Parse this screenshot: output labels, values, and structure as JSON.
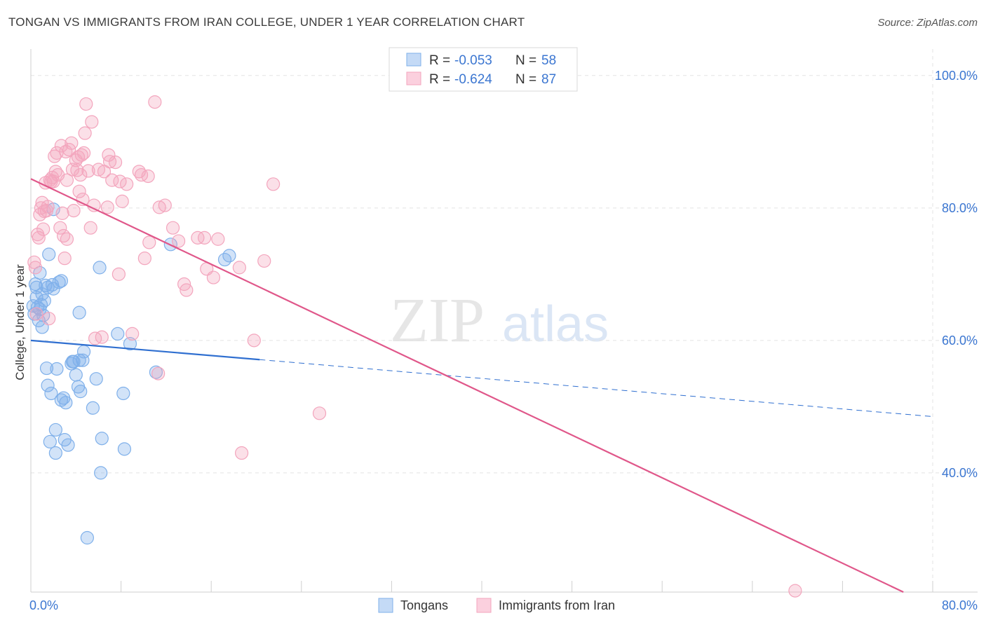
{
  "title": "TONGAN VS IMMIGRANTS FROM IRAN COLLEGE, UNDER 1 YEAR CORRELATION CHART",
  "source": "Source: ZipAtlas.com",
  "watermark": {
    "zip": "ZIP",
    "atlas": "atlas"
  },
  "stats": [
    {
      "r_label": "R =",
      "r_value": "-0.053",
      "n_label": "N =",
      "n_value": "58",
      "color": "#7fb0ea"
    },
    {
      "r_label": "R =",
      "r_value": "-0.624",
      "n_label": "N =",
      "n_value": "87",
      "color": "#f3a5bd"
    }
  ],
  "chart_data": {
    "type": "scatter",
    "title": "TONGAN VS IMMIGRANTS FROM IRAN COLLEGE, UNDER 1 YEAR CORRELATION CHART",
    "xlabel": "",
    "ylabel": "College, Under 1 year",
    "xlim": [
      0,
      80
    ],
    "ylim": [
      22,
      104
    ],
    "x_tick_labels": [
      "0.0%",
      "80.0%"
    ],
    "y_tick_labels": [
      "40.0%",
      "60.0%",
      "80.0%",
      "100.0%"
    ],
    "y_gridlines": [
      40,
      60,
      80,
      100
    ],
    "grid": true,
    "legend_position": "bottom-center",
    "series": [
      {
        "name": "Tongans",
        "color": "#7fb0ea",
        "line_color": "#2f6fd0",
        "trend": {
          "x0": 0,
          "y0": 60.0,
          "x1": 20.3,
          "y1": 57.1,
          "x_dash_end": 80,
          "y_dash_end": 48.5
        },
        "points": [
          [
            0.2,
            65.2
          ],
          [
            0.3,
            64.0
          ],
          [
            0.4,
            68.5
          ],
          [
            0.5,
            68.0
          ],
          [
            0.6,
            65.0
          ],
          [
            0.7,
            63.0
          ],
          [
            0.8,
            70.2
          ],
          [
            0.9,
            65.4
          ],
          [
            1.0,
            62.0
          ],
          [
            1.1,
            63.8
          ],
          [
            1.2,
            66.0
          ],
          [
            1.3,
            68.3
          ],
          [
            1.4,
            55.8
          ],
          [
            1.5,
            53.2
          ],
          [
            1.6,
            73.0
          ],
          [
            1.7,
            44.7
          ],
          [
            1.8,
            52.0
          ],
          [
            1.9,
            68.4
          ],
          [
            2.0,
            67.8
          ],
          [
            2.2,
            43.0
          ],
          [
            2.2,
            46.5
          ],
          [
            2.3,
            55.7
          ],
          [
            2.5,
            68.8
          ],
          [
            2.7,
            69.0
          ],
          [
            2.7,
            51.0
          ],
          [
            2.9,
            51.3
          ],
          [
            3.0,
            45.0
          ],
          [
            3.1,
            50.6
          ],
          [
            3.3,
            44.2
          ],
          [
            3.6,
            56.5
          ],
          [
            3.7,
            56.8
          ],
          [
            4.0,
            54.8
          ],
          [
            4.2,
            53.0
          ],
          [
            4.3,
            57.0
          ],
          [
            4.4,
            52.3
          ],
          [
            4.6,
            57.0
          ],
          [
            4.7,
            58.3
          ],
          [
            5.5,
            49.8
          ],
          [
            5.8,
            54.2
          ],
          [
            6.1,
            71.0
          ],
          [
            6.2,
            40.0
          ],
          [
            6.3,
            45.2
          ],
          [
            7.7,
            61.0
          ],
          [
            8.2,
            52.0
          ],
          [
            8.3,
            43.6
          ],
          [
            8.8,
            59.5
          ],
          [
            11.1,
            55.2
          ],
          [
            12.4,
            74.5
          ],
          [
            17.2,
            72.2
          ],
          [
            17.6,
            72.8
          ],
          [
            2.0,
            79.8
          ],
          [
            4.3,
            64.2
          ],
          [
            5.0,
            30.2
          ],
          [
            0.5,
            66.5
          ],
          [
            1.0,
            67.0
          ],
          [
            1.5,
            68.0
          ],
          [
            3.8,
            56.8
          ],
          [
            0.8,
            64.7
          ]
        ]
      },
      {
        "name": "Immigrants from Iran",
        "color": "#f3a5bd",
        "line_color": "#e0578a",
        "trend": {
          "x0": 0,
          "y0": 84.4,
          "x1": 77.4,
          "y1": 22.0
        },
        "points": [
          [
            0.3,
            71.8
          ],
          [
            0.4,
            71.0
          ],
          [
            0.5,
            64.0
          ],
          [
            0.6,
            76.0
          ],
          [
            0.7,
            75.5
          ],
          [
            0.8,
            79.0
          ],
          [
            0.9,
            80.0
          ],
          [
            1.0,
            80.8
          ],
          [
            1.1,
            76.8
          ],
          [
            1.2,
            79.5
          ],
          [
            1.3,
            83.8
          ],
          [
            1.4,
            79.6
          ],
          [
            1.5,
            80.2
          ],
          [
            1.6,
            63.3
          ],
          [
            1.7,
            84.2
          ],
          [
            1.8,
            84.0
          ],
          [
            1.9,
            84.6
          ],
          [
            2.0,
            84.0
          ],
          [
            2.1,
            87.8
          ],
          [
            2.2,
            85.5
          ],
          [
            2.3,
            88.3
          ],
          [
            2.4,
            85.0
          ],
          [
            2.6,
            77.0
          ],
          [
            2.7,
            89.4
          ],
          [
            2.8,
            79.2
          ],
          [
            2.9,
            75.8
          ],
          [
            3.0,
            72.4
          ],
          [
            3.1,
            88.5
          ],
          [
            3.2,
            75.3
          ],
          [
            3.2,
            84.2
          ],
          [
            3.4,
            88.8
          ],
          [
            3.6,
            89.8
          ],
          [
            3.7,
            85.8
          ],
          [
            3.8,
            79.6
          ],
          [
            4.0,
            87.2
          ],
          [
            4.1,
            85.7
          ],
          [
            4.2,
            87.7
          ],
          [
            4.3,
            82.5
          ],
          [
            4.4,
            85.0
          ],
          [
            4.5,
            88.0
          ],
          [
            4.6,
            81.3
          ],
          [
            4.7,
            88.3
          ],
          [
            4.8,
            91.3
          ],
          [
            4.9,
            95.7
          ],
          [
            5.1,
            85.6
          ],
          [
            5.3,
            77.0
          ],
          [
            5.4,
            93.0
          ],
          [
            5.6,
            80.4
          ],
          [
            5.7,
            60.3
          ],
          [
            6.0,
            85.8
          ],
          [
            6.3,
            60.5
          ],
          [
            6.5,
            85.5
          ],
          [
            6.8,
            80.1
          ],
          [
            6.9,
            88.0
          ],
          [
            7.0,
            87.0
          ],
          [
            7.2,
            84.2
          ],
          [
            7.5,
            86.9
          ],
          [
            7.8,
            70.0
          ],
          [
            7.9,
            84.0
          ],
          [
            8.1,
            81.0
          ],
          [
            8.5,
            83.6
          ],
          [
            9.0,
            61.0
          ],
          [
            9.6,
            85.5
          ],
          [
            9.8,
            85.0
          ],
          [
            10.1,
            72.4
          ],
          [
            10.4,
            84.8
          ],
          [
            10.5,
            74.8
          ],
          [
            11.0,
            96.0
          ],
          [
            11.3,
            55.0
          ],
          [
            11.4,
            80.1
          ],
          [
            11.9,
            80.4
          ],
          [
            12.6,
            77.0
          ],
          [
            13.1,
            75.0
          ],
          [
            13.6,
            68.5
          ],
          [
            13.8,
            67.6
          ],
          [
            14.8,
            75.5
          ],
          [
            15.4,
            75.5
          ],
          [
            15.6,
            70.8
          ],
          [
            16.2,
            69.5
          ],
          [
            16.6,
            75.3
          ],
          [
            18.5,
            71.0
          ],
          [
            18.7,
            43.0
          ],
          [
            19.8,
            60.0
          ],
          [
            20.7,
            72.0
          ],
          [
            21.5,
            83.6
          ],
          [
            25.6,
            49.0
          ],
          [
            67.8,
            22.2
          ]
        ]
      }
    ]
  },
  "legend": [
    {
      "label": "Tongans",
      "color": "#7fb0ea"
    },
    {
      "label": "Immigrants from Iran",
      "color": "#f3a5bd"
    }
  ]
}
